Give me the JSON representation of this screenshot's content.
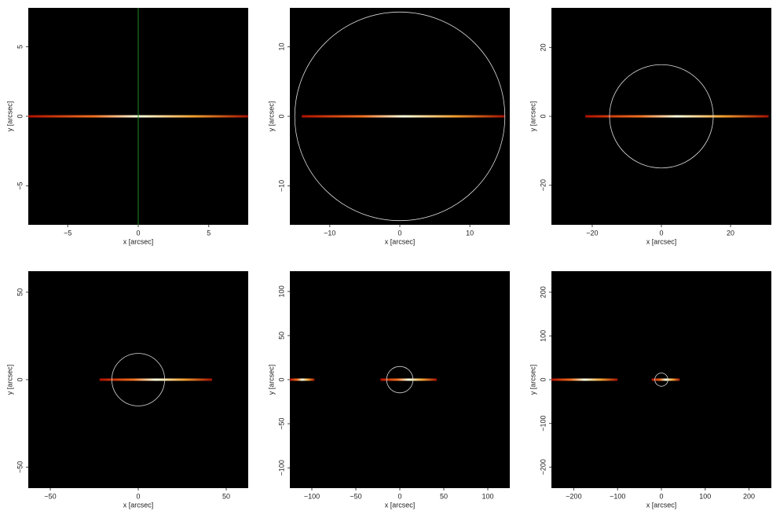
{
  "chart_data": [
    {
      "type": "image",
      "xlabel": "x [arcsec]",
      "ylabel": "y [arcsec]",
      "xlim": [
        -7.8,
        7.8
      ],
      "ylim": [
        -7.8,
        7.8
      ],
      "xticks": [
        {
          "value": -5,
          "label": "−5"
        },
        0,
        5
      ],
      "yticks": [
        {
          "value": -5,
          "label": "−5"
        },
        0,
        5
      ],
      "vline": 0,
      "vline_color": "#1e8a1e",
      "streaks": [
        [
          -7.8,
          7.8
        ]
      ]
    },
    {
      "type": "image",
      "xlabel": "x [arcsec]",
      "ylabel": "y [arcsec]",
      "xlim": [
        -15.7,
        15.7
      ],
      "ylim": [
        -15.6,
        15.6
      ],
      "xticks": [
        {
          "value": -10,
          "label": "−10"
        },
        0,
        10
      ],
      "yticks": [
        {
          "value": -10,
          "label": "−10"
        },
        0,
        10
      ],
      "circle_radius": 15,
      "streaks": [
        [
          -14,
          15
        ]
      ]
    },
    {
      "type": "image",
      "xlabel": "x [arcsec]",
      "ylabel": "y [arcsec]",
      "xlim": [
        -31.8,
        31.8
      ],
      "ylim": [
        -31.5,
        31.5
      ],
      "xticks": [
        {
          "value": -20,
          "label": "−20"
        },
        0,
        20
      ],
      "yticks": [
        {
          "value": -20,
          "label": "−20"
        },
        0,
        20
      ],
      "circle_radius": 15,
      "streaks": [
        [
          -22,
          31
        ]
      ]
    },
    {
      "type": "image",
      "xlabel": "x [arcsec]",
      "ylabel": "y [arcsec]",
      "xlim": [
        -62.5,
        62.5
      ],
      "ylim": [
        -62,
        62
      ],
      "xticks": [
        {
          "value": -50,
          "label": "−50"
        },
        0,
        50
      ],
      "yticks": [
        {
          "value": -50,
          "label": "−50"
        },
        0,
        50
      ],
      "circle_radius": 15,
      "streaks": [
        [
          -22,
          42
        ]
      ]
    },
    {
      "type": "image",
      "xlabel": "x [arcsec]",
      "ylabel": "y [arcsec]",
      "xlim": [
        -125,
        125
      ],
      "ylim": [
        -123,
        123
      ],
      "xticks": [
        {
          "value": -100,
          "label": "−100"
        },
        {
          "value": -50,
          "label": "−50"
        },
        0,
        50,
        100
      ],
      "yticks": [
        {
          "value": -100,
          "label": "−100"
        },
        {
          "value": -50,
          "label": "−50"
        },
        0,
        50,
        100
      ],
      "circle_radius": 15,
      "streaks": [
        [
          -125,
          -97
        ],
        [
          -22,
          42
        ]
      ]
    },
    {
      "type": "image",
      "xlabel": "x [arcsec]",
      "ylabel": "y [arcsec]",
      "xlim": [
        -251,
        251
      ],
      "ylim": [
        -248,
        248
      ],
      "xticks": [
        {
          "value": -200,
          "label": "−200"
        },
        {
          "value": -100,
          "label": "−100"
        },
        0,
        100,
        200
      ],
      "yticks": [
        {
          "value": -200,
          "label": "−200"
        },
        {
          "value": -100,
          "label": "−100"
        },
        0,
        100,
        200
      ],
      "circle_radius": 15,
      "streaks": [
        [
          -251,
          -100
        ],
        [
          -22,
          42
        ]
      ]
    }
  ]
}
